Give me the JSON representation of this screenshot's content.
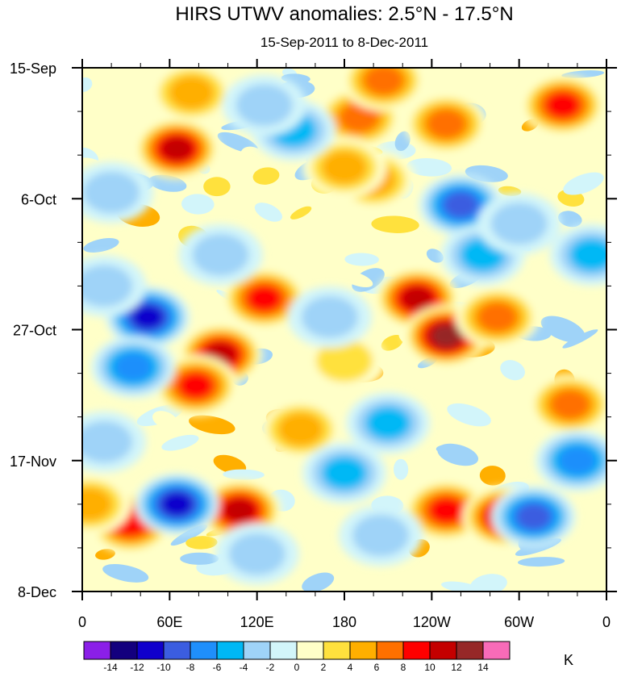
{
  "chart_data": {
    "type": "heatmap",
    "title": "HIRS UTWV anomalies: 2.5°N - 17.5°N",
    "subtitle": "15-Sep-2011 to 8-Dec-2011",
    "xlabel": "",
    "ylabel": "",
    "x_ticks": [
      "0",
      "60E",
      "120E",
      "180",
      "120W",
      "60W",
      "0"
    ],
    "x_range_deg_east": [
      0,
      360
    ],
    "y_ticks": [
      "15-Sep",
      "6-Oct",
      "27-Oct",
      "17-Nov",
      "8-Dec"
    ],
    "y_range_days_since_15_sep": [
      0,
      84
    ],
    "y_direction": "time increases downward",
    "colorbar": {
      "units": "K",
      "labels": [
        "-14",
        "-12",
        "-10",
        "-8",
        "-6",
        "-4",
        "-2",
        "0",
        "2",
        "4",
        "6",
        "8",
        "10",
        "12",
        "14"
      ],
      "levels": [
        -14,
        -12,
        -10,
        -8,
        -6,
        -4,
        -2,
        0,
        2,
        4,
        6,
        8,
        10,
        12,
        14
      ],
      "colors": [
        "#8b1fe8",
        "#13007e",
        "#1000cc",
        "#3b5de0",
        "#1f8ffb",
        "#00b8f5",
        "#9fd3f8",
        "#d2f5fa",
        "#ffffc8",
        "#ffe13d",
        "#ffaf00",
        "#ff7000",
        "#ff0000",
        "#c40000",
        "#962828",
        "#f86bb8"
      ]
    },
    "anomaly_features": [
      {
        "lon": 65,
        "day": 13,
        "value": 12
      },
      {
        "lon": 190,
        "day": 8,
        "value": 8
      },
      {
        "lon": 207,
        "day": 2,
        "value": 7
      },
      {
        "lon": 75,
        "day": 4,
        "value": 6
      },
      {
        "lon": 330,
        "day": 6,
        "value": 10
      },
      {
        "lon": 250,
        "day": 9,
        "value": 8
      },
      {
        "lon": 200,
        "day": 18,
        "value": 6
      },
      {
        "lon": 230,
        "day": 37,
        "value": 12
      },
      {
        "lon": 250,
        "day": 43,
        "value": 14
      },
      {
        "lon": 180,
        "day": 16,
        "value": 6
      },
      {
        "lon": 285,
        "day": 40,
        "value": 8
      },
      {
        "lon": 125,
        "day": 37,
        "value": 10
      },
      {
        "lon": 95,
        "day": 46,
        "value": 12
      },
      {
        "lon": 78,
        "day": 51,
        "value": 10
      },
      {
        "lon": 33,
        "day": 73,
        "value": 10
      },
      {
        "lon": 108,
        "day": 71,
        "value": 12
      },
      {
        "lon": 250,
        "day": 71,
        "value": 10
      },
      {
        "lon": 290,
        "day": 72,
        "value": 12
      },
      {
        "lon": 150,
        "day": 58,
        "value": 6
      },
      {
        "lon": 180,
        "day": 47,
        "value": 4
      },
      {
        "lon": 335,
        "day": 54,
        "value": 8
      },
      {
        "lon": 5,
        "day": 70,
        "value": 6
      },
      {
        "lon": 45,
        "day": 40,
        "value": -12
      },
      {
        "lon": 35,
        "day": 48,
        "value": -8
      },
      {
        "lon": 65,
        "day": 70,
        "value": -12
      },
      {
        "lon": 260,
        "day": 22,
        "value": -10
      },
      {
        "lon": 275,
        "day": 30,
        "value": -6
      },
      {
        "lon": 145,
        "day": 10,
        "value": -6
      },
      {
        "lon": 125,
        "day": 6,
        "value": -4
      },
      {
        "lon": 340,
        "day": 63,
        "value": -8
      },
      {
        "lon": 310,
        "day": 72,
        "value": -10
      },
      {
        "lon": 180,
        "day": 65,
        "value": -6
      },
      {
        "lon": 210,
        "day": 57,
        "value": -6
      },
      {
        "lon": 170,
        "day": 40,
        "value": -4
      },
      {
        "lon": 15,
        "day": 35,
        "value": -4
      },
      {
        "lon": 95,
        "day": 30,
        "value": -4
      },
      {
        "lon": 300,
        "day": 25,
        "value": -4
      },
      {
        "lon": 20,
        "day": 20,
        "value": -4
      },
      {
        "lon": 350,
        "day": 30,
        "value": -6
      },
      {
        "lon": 120,
        "day": 78,
        "value": -4
      },
      {
        "lon": 205,
        "day": 75,
        "value": -4
      },
      {
        "lon": 15,
        "day": 60,
        "value": -4
      }
    ]
  }
}
